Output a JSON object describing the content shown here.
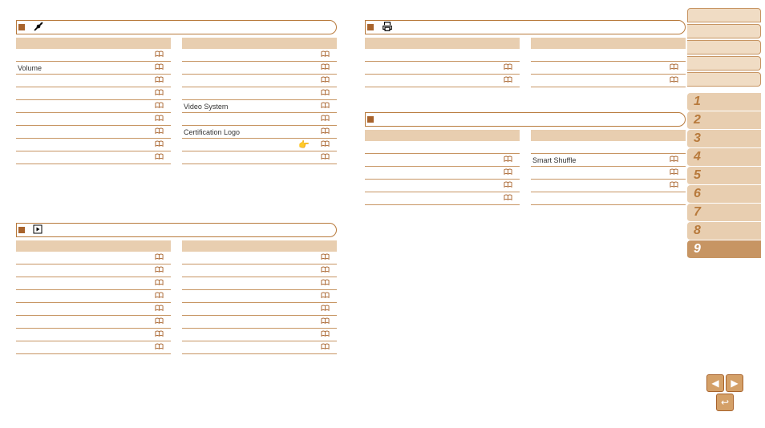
{
  "colors": {
    "line": "#c79563",
    "header_bg": "#e8ceb0",
    "accent": "#a8632c",
    "chapter_bg": "#e8ceb0",
    "chapter_active_bg": "#c79563",
    "chapter_text": "#b87a3c",
    "chapter_active_text": "#ffffff",
    "sidebar_box_bg": "#f0dcc4",
    "nav_btn_bg": "#d4a068"
  },
  "sections": {
    "setup": {
      "icon": "wrench-screwdriver",
      "left_rows": [
        {
          "label": "",
          "ref": true
        },
        {
          "label": "Volume",
          "ref": true
        },
        {
          "label": "",
          "ref": true
        },
        {
          "label": "",
          "ref": true
        },
        {
          "label": "",
          "ref": true
        },
        {
          "label": "",
          "ref": true
        },
        {
          "label": "",
          "ref": true
        },
        {
          "label": "",
          "ref": true
        },
        {
          "label": "",
          "ref": true
        }
      ],
      "right_rows": [
        {
          "label": "",
          "ref": true
        },
        {
          "label": "",
          "ref": true
        },
        {
          "label": "",
          "ref": true
        },
        {
          "label": "",
          "ref": true
        },
        {
          "label": "Video System",
          "ref": true
        },
        {
          "label": "",
          "ref": true
        },
        {
          "label": "Certification Logo",
          "ref": true
        },
        {
          "label": "",
          "ref": true,
          "extra_icon": true
        },
        {
          "label": "",
          "ref": true
        }
      ]
    },
    "playback": {
      "icon": "play",
      "left_rows": [
        {
          "label": "",
          "ref": true
        },
        {
          "label": "",
          "ref": true
        },
        {
          "label": "",
          "ref": true
        },
        {
          "label": "",
          "ref": true
        },
        {
          "label": "",
          "ref": true
        },
        {
          "label": "",
          "ref": true
        },
        {
          "label": "",
          "ref": true
        },
        {
          "label": "",
          "ref": true
        }
      ],
      "right_rows": [
        {
          "label": "",
          "ref": true
        },
        {
          "label": "",
          "ref": true
        },
        {
          "label": "",
          "ref": true
        },
        {
          "label": "",
          "ref": true
        },
        {
          "label": "",
          "ref": true
        },
        {
          "label": "",
          "ref": true
        },
        {
          "label": "",
          "ref": true
        },
        {
          "label": "",
          "ref": true
        }
      ]
    },
    "print": {
      "icon": "printer",
      "left_rows": [
        {
          "label": "",
          "ref": false
        },
        {
          "label": "",
          "ref": true
        },
        {
          "label": "",
          "ref": true
        }
      ],
      "right_rows": [
        {
          "label": "",
          "ref": false
        },
        {
          "label": "",
          "ref": true
        },
        {
          "label": "",
          "ref": true
        }
      ]
    },
    "music": {
      "icon": "",
      "left_rows": [
        {
          "label": "",
          "ref": false
        },
        {
          "label": "",
          "ref": true
        },
        {
          "label": "",
          "ref": true
        },
        {
          "label": "",
          "ref": true
        },
        {
          "label": "",
          "ref": true
        }
      ],
      "right_rows": [
        {
          "label": "",
          "ref": false
        },
        {
          "label": "Smart Shuffle",
          "ref": true
        },
        {
          "label": "",
          "ref": true
        },
        {
          "label": "",
          "ref": true
        },
        {
          "label": "",
          "ref": false
        }
      ]
    }
  },
  "sidebar": {
    "top_boxes": 5,
    "chapters": [
      "1",
      "2",
      "3",
      "4",
      "5",
      "6",
      "7",
      "8",
      "9"
    ],
    "active_chapter": "9"
  },
  "nav": {
    "prev": "◀",
    "next": "▶",
    "return": "↩"
  }
}
